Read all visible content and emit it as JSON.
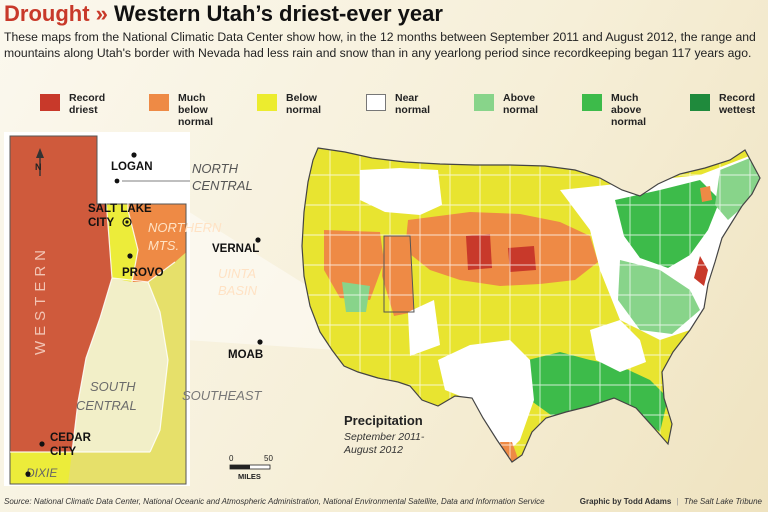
{
  "header": {
    "kicker": "Drought »",
    "title": "Western Utah’s driest-ever year",
    "intro": "These maps from the National Climatic Data Center show how, in the 12 months between September 2011 and August 2012, the range and mountains along Utah's border with Nevada had less rain and snow than in any yearlong period since recordkeeping began 117 years ago."
  },
  "legend": [
    {
      "label": "Record\ndriest",
      "color": "#c8392a"
    },
    {
      "label": "Much\nbelow\nnormal",
      "color": "#ee8a45"
    },
    {
      "label": "Below\nnormal",
      "color": "#ecec2e"
    },
    {
      "label": "Near\nnormal",
      "color": "#ffffff"
    },
    {
      "label": "Above\nnormal",
      "color": "#88d48a"
    },
    {
      "label": "Much\nabove\nnormal",
      "color": "#3dbb4a"
    },
    {
      "label": "Record\nwettest",
      "color": "#1f8a3c"
    }
  ],
  "utah_map": {
    "north_arrow": "N",
    "regions": {
      "western": "WESTERN",
      "north_central": "NORTH\nCENTRAL",
      "northern_mts": "NORTHERN\nMTS.",
      "uinta_basin": "UINTA\nBASIN",
      "south_central": "SOUTH\nCENTRAL",
      "southeast": "SOUTHEAST",
      "dixie": "DIXIE"
    },
    "cities": {
      "logan": "LOGAN",
      "salt_lake_city": "SALT LAKE\nCITY",
      "provo": "PROVO",
      "vernal": "VERNAL",
      "moab": "MOAB",
      "cedar_city": "CEDAR\nCITY"
    },
    "scale": {
      "zero": "0",
      "max": "50",
      "unit": "MILES"
    }
  },
  "us_map": {
    "caption_title": "Precipitation",
    "caption_period": "September 2011-\nAugust 2012"
  },
  "footer": {
    "source": "Source: National Climatic Data Center, National Oceanic and Atmospheric Administration, National Environmental Satellite, Data and Information Service",
    "byline": "Graphic by Todd Adams",
    "separator": "|",
    "publication": "The Salt Lake Tribune"
  }
}
